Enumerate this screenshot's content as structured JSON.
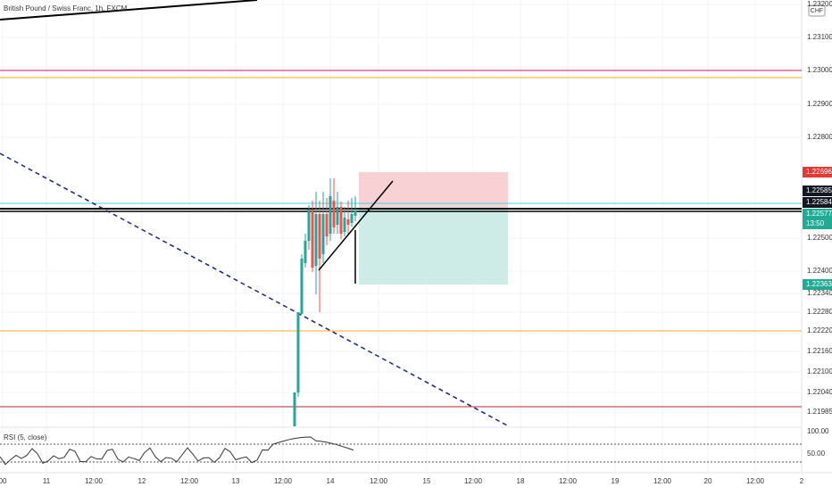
{
  "header": {
    "title": "British Pound / Swiss Franc, 1h, FXCM",
    "currency": "CHF"
  },
  "price_axis": {
    "labels": [
      "1.23200",
      "1.23100",
      "1.23000",
      "1.22900",
      "1.22800",
      "1.22500",
      "1.22400",
      "1.22340",
      "1.22280",
      "1.22220",
      "1.22160",
      "1.22100",
      "1.22040",
      "1.21985"
    ]
  },
  "price_badges": {
    "stop": "1.22696",
    "level_a": "1.22585",
    "level_b": "1.22584",
    "last": "1.22577",
    "countdown": "13:50",
    "target": "1.22363"
  },
  "rsi": {
    "title": "RSI (5, close)",
    "labels": [
      "100.00",
      "50.00"
    ]
  },
  "time_axis": {
    "labels": [
      "00",
      "11",
      "12:00",
      "12",
      "12:00",
      "13",
      "12:00",
      "14",
      "12:00",
      "15",
      "12:00",
      "18",
      "12:00",
      "19",
      "12:00",
      "20",
      "12:00",
      "2"
    ]
  }
}
